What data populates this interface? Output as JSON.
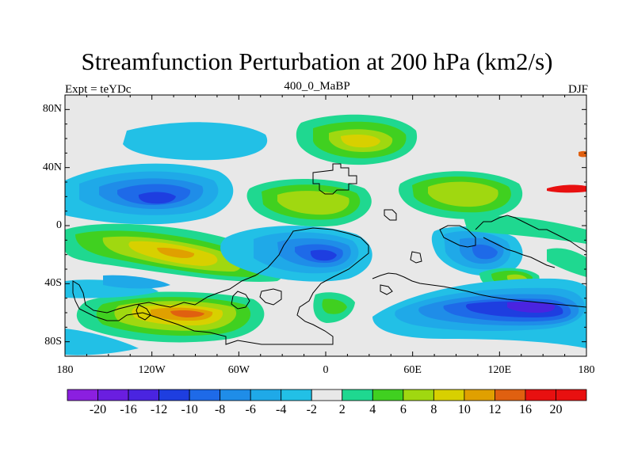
{
  "figure": {
    "title": "Streamfunction Perturbation at 200 hPa (km2/s)",
    "left_label": "Expt = teYDc",
    "center_label": "400_0_MaBP",
    "right_label": "DJF"
  },
  "map": {
    "lon_range": [
      -180,
      180
    ],
    "lat_range": [
      -90,
      90
    ],
    "lon_ticks": [
      {
        "value": -180,
        "label": "180"
      },
      {
        "value": -120,
        "label": "120W"
      },
      {
        "value": -60,
        "label": "60W"
      },
      {
        "value": 0,
        "label": "0"
      },
      {
        "value": 60,
        "label": "60E"
      },
      {
        "value": 120,
        "label": "120E"
      },
      {
        "value": 180,
        "label": "180"
      }
    ],
    "lat_ticks": [
      {
        "value": 80,
        "label": "80N"
      },
      {
        "value": 40,
        "label": "40N"
      },
      {
        "value": 0,
        "label": "0"
      },
      {
        "value": -40,
        "label": "40S"
      },
      {
        "value": -80,
        "label": "80S"
      }
    ],
    "background_color": "#e8e8e8"
  },
  "colorbar": {
    "levels": [
      "-20",
      "-16",
      "-12",
      "-10",
      "-8",
      "-6",
      "-4",
      "-2",
      "2",
      "4",
      "6",
      "8",
      "10",
      "12",
      "16",
      "20"
    ],
    "colors": [
      "#8b1fe0",
      "#6a1ee0",
      "#4a24e0",
      "#1e3ee0",
      "#1e6ae8",
      "#1f8de8",
      "#1fa9e8",
      "#22c0e6",
      "#e8e8e8",
      "#1fd890",
      "#40d020",
      "#a0d810",
      "#d8d000",
      "#e0a000",
      "#e06010",
      "#e81010"
    ]
  }
}
